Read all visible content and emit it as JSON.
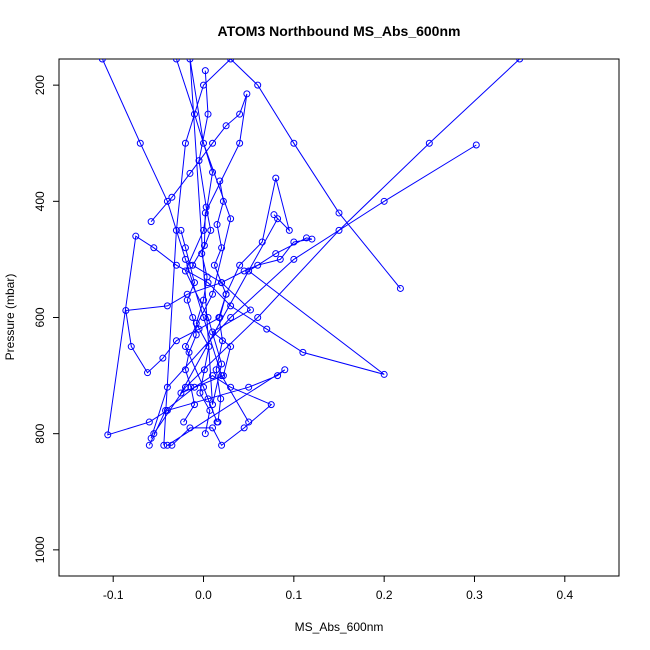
{
  "chart_data": {
    "type": "line",
    "title": "ATOM3 Northbound MS_Abs_600nm",
    "xlabel": "MS_Abs_600nm",
    "ylabel": "Pressure (mbar)",
    "xlim": [
      -0.16,
      0.46
    ],
    "ylim": [
      1045,
      155
    ],
    "y_reversed": true,
    "x_ticks": [
      -0.1,
      0.0,
      0.1,
      0.2,
      0.3,
      0.4
    ],
    "x_tick_labels": [
      "-0.1",
      "0.0",
      "0.1",
      "0.2",
      "0.3",
      "0.4"
    ],
    "y_ticks": [
      200,
      400,
      600,
      800,
      1000
    ],
    "y_tick_labels": [
      "200",
      "400",
      "600",
      "800",
      "1000"
    ],
    "grid": false,
    "legend": "none",
    "color": "#0000ff",
    "series": [
      {
        "x": [
          -0.058,
          -0.035,
          -0.015,
          0.01,
          0.025,
          0.04,
          0.048,
          0.04,
          0.002,
          0.001,
          -0.012,
          0.02,
          0.052,
          0.01,
          0.03,
          0.022,
          -0.025,
          0.082,
          0.078,
          0.095,
          0.08,
          0.065,
          0.04,
          0.025,
          0.018,
          -0.005,
          -0.03,
          -0.045,
          -0.062,
          -0.08,
          -0.086,
          -0.04,
          -0.018,
          0.02,
          0.045,
          0.06,
          0.085,
          0.1,
          0.12,
          0.114,
          0.08,
          0.05,
          0.2,
          0.11,
          0.07,
          0.03,
          0.005,
          -0.03,
          -0.055,
          -0.075,
          -0.106,
          -0.06,
          -0.04,
          0.005,
          0.05,
          0.082,
          0.09,
          -0.04,
          -0.035,
          -0.015,
          0.01,
          0.02,
          0.045,
          0.075,
          0.03,
          0.01,
          -0.01,
          -0.042,
          -0.06
        ],
        "y": [
          435,
          393,
          352,
          300,
          270,
          250,
          215,
          300,
          420,
          476,
          510,
          540,
          587,
          625,
          650,
          700,
          730,
          430,
          423,
          450,
          360,
          470,
          510,
          560,
          600,
          620,
          640,
          670,
          695,
          650,
          588,
          580,
          560,
          540,
          520,
          510,
          500,
          470,
          465,
          463,
          490,
          520,
          698,
          660,
          620,
          580,
          540,
          510,
          480,
          460,
          802,
          780,
          760,
          740,
          720,
          700,
          690,
          820,
          820,
          790,
          790,
          820,
          790,
          750,
          720,
          700,
          720,
          760,
          820
        ]
      },
      {
        "x": [
          0.218,
          0.15,
          0.1,
          0.06,
          0.03,
          0.0,
          -0.02,
          -0.03,
          -0.044
        ],
        "y": [
          550,
          420,
          300,
          200,
          155,
          200,
          300,
          450,
          820
        ]
      },
      {
        "x": [
          0.302,
          0.2,
          0.1,
          0.03,
          -0.04,
          -0.058
        ],
        "y": [
          303,
          400,
          500,
          600,
          720,
          808
        ]
      },
      {
        "x": [
          0.35,
          0.25,
          0.15,
          0.06,
          -0.02,
          -0.055
        ],
        "y": [
          155,
          300,
          450,
          600,
          720,
          800
        ]
      },
      {
        "x": [
          -0.112,
          -0.07,
          -0.04,
          -0.02,
          0.0,
          0.02,
          0.05
        ],
        "y": [
          155,
          300,
          400,
          500,
          600,
          700,
          780
        ]
      },
      {
        "x": [
          -0.03,
          -0.01,
          0.01,
          0.0,
          -0.02,
          0.005,
          0.02,
          0.01,
          -0.015,
          0.0,
          0.03,
          0.01,
          -0.02,
          0.0,
          0.015
        ],
        "y": [
          155,
          250,
          350,
          450,
          520,
          600,
          680,
          750,
          155,
          300,
          430,
          560,
          650,
          720,
          780
        ]
      },
      {
        "x": [
          0.002,
          0.005,
          -0.005,
          0.003,
          0.008,
          -0.002,
          0.004,
          0.0,
          -0.008,
          0.006,
          0.001,
          -0.004,
          0.007,
          0.002
        ],
        "y": [
          175,
          250,
          330,
          410,
          450,
          490,
          530,
          570,
          610,
          650,
          690,
          730,
          760,
          800
        ]
      },
      {
        "x": [
          -0.025,
          -0.02,
          -0.015,
          -0.01,
          -0.018,
          -0.012,
          -0.008,
          -0.016,
          -0.02,
          -0.014,
          -0.01,
          -0.022
        ],
        "y": [
          450,
          480,
          510,
          540,
          570,
          600,
          630,
          660,
          690,
          720,
          750,
          780
        ]
      },
      {
        "x": [
          0.018,
          0.022,
          0.015,
          0.02,
          0.012,
          0.025,
          0.017,
          0.021,
          0.014,
          0.019,
          0.016
        ],
        "y": [
          365,
          400,
          440,
          480,
          510,
          560,
          600,
          640,
          690,
          740,
          780
        ]
      }
    ]
  }
}
